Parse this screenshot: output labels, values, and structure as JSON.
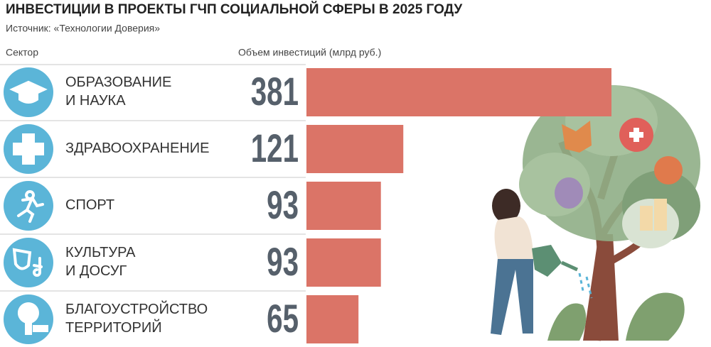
{
  "chart_data": {
    "type": "bar",
    "orientation": "horizontal",
    "title": "ИНВЕСТИЦИИ В ПРОЕКТЫ ГЧП СОЦИАЛЬНОЙ СФЕРЫ В 2025 ГОДУ",
    "subtitle": "Источник: «Технологии Доверия»",
    "category_header": "Сектор",
    "value_header": "Объем инвестиций (млрд руб.)",
    "categories": [
      "ОБРАЗОВАНИЕ\nИ НАУКА",
      "ЗДРАВООХРАНЕНИЕ",
      "СПОРТ",
      "КУЛЬТУРА\nИ ДОСУГ",
      "БЛАГОУСТРОЙСТВО\nТЕРРИТОРИЙ"
    ],
    "values": [
      381,
      121,
      93,
      93,
      65
    ],
    "color": "#db7467",
    "icon_color": "#5bb5d8"
  }
}
